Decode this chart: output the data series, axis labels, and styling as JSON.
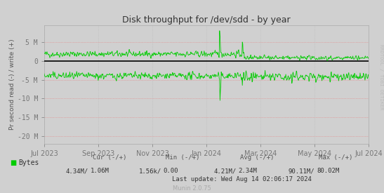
{
  "title": "Disk throughput for /dev/sdd - by year",
  "ylabel": "Pr second read (-) / write (+)",
  "xlabel_ticks": [
    "Jul 2023",
    "Sep 2023",
    "Nov 2023",
    "Jan 2024",
    "Mar 2024",
    "May 2024",
    "Jul 2024"
  ],
  "yticks": [
    -20000000,
    -15000000,
    -10000000,
    -5000000,
    0,
    5000000
  ],
  "ytick_labels": [
    "-20 M",
    "-15 M",
    "-10 M",
    "-5 M",
    "0",
    "5 M"
  ],
  "ylim": [
    -22000000,
    9500000
  ],
  "bg_color": "#d0d0d0",
  "plot_bg_color": "#d0d0d0",
  "line_color": "#00cc00",
  "grid_v_color": "#bbbbbb",
  "grid_h_color": "#e88080",
  "zero_line_color": "#000000",
  "right_label": "RRDTOOL / TOBI OETIKER",
  "legend_label": "Bytes",
  "legend_color": "#00cc00",
  "cur_neg": "4.34M/",
  "cur_pos": "1.06M",
  "min_neg": "1.56k/",
  "min_pos": "0.00",
  "avg_neg": "4.21M/",
  "avg_pos": "2.34M",
  "max_neg": "90.11M/",
  "max_pos": "80.02M",
  "last_update": "Last update: Wed Aug 14 02:06:17 2024",
  "munin_version": "Munin 2.0.75",
  "seed": 42,
  "n_points": 800
}
